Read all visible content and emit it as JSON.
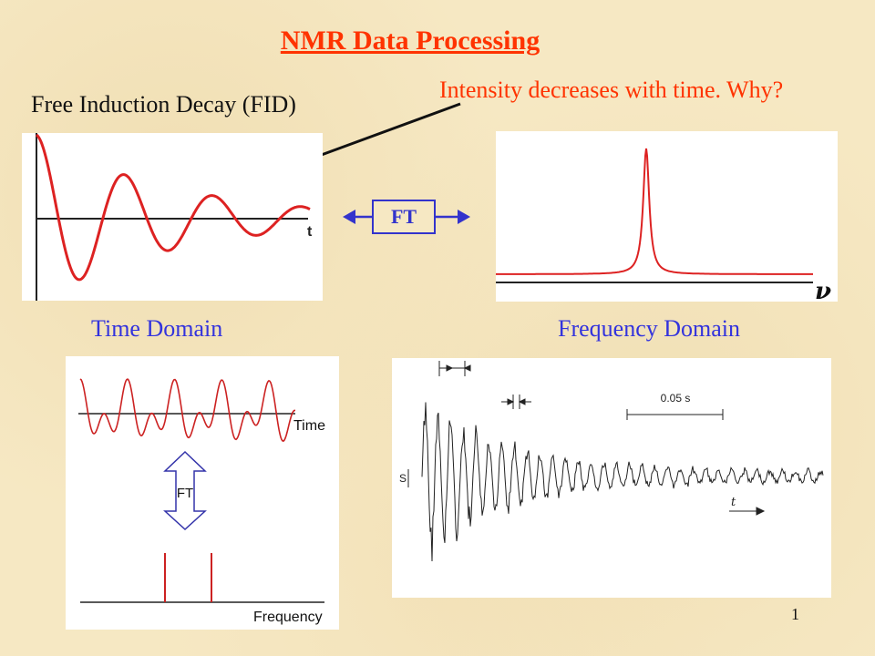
{
  "slide": {
    "title": "NMR Data Processing",
    "fid_label": "Free Induction Decay (FID)",
    "annotation": "Intensity decreases with time. Why?",
    "ft_label": "FT",
    "time_domain_label": "Time Domain",
    "frequency_domain_label": "Frequency Domain",
    "page_number": "1"
  },
  "fid_plot": {
    "axis_label": "t"
  },
  "spectrum_plot": {
    "axis_label": "ν"
  },
  "wave_diagram": {
    "time_label": "Time",
    "ft_label": "FT",
    "frequency_label": "Frequency"
  },
  "experimental_fid": {
    "interval_label": "0.05 s",
    "y_label": "S",
    "x_label": "t"
  },
  "colors": {
    "title": "#ff3300",
    "domain_labels": "#3333dd",
    "signal": "#dd2222"
  }
}
